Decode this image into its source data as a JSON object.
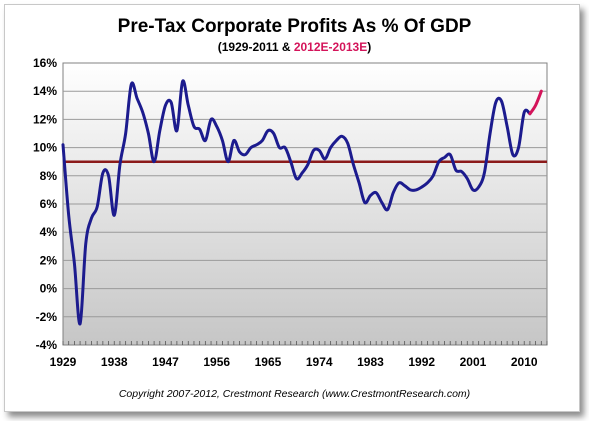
{
  "chart_data": {
    "type": "line",
    "title": "Pre-Tax Corporate Profits As % Of GDP",
    "subtitle_prefix": "(1929-2011 & ",
    "subtitle_highlight": "2012E-2013E",
    "subtitle_suffix": ")",
    "footer": "Copyright 2007-2012, Crestmont Research (www.CrestmontResearch.com)",
    "xlim": [
      1929,
      2014
    ],
    "ylim": [
      -4,
      16
    ],
    "x_ticks": [
      "1929",
      "1938",
      "1947",
      "1956",
      "1965",
      "1974",
      "1983",
      "1992",
      "2001",
      "2010"
    ],
    "y_ticks": [
      "16%",
      "14%",
      "12%",
      "10%",
      "8%",
      "6%",
      "4%",
      "2%",
      "0%",
      "-2%",
      "-4%"
    ],
    "average_line": {
      "value": 9.0,
      "color": "#8b1a1a"
    },
    "series": [
      {
        "color": "#1c1b8e",
        "x": [
          1929,
          1930,
          1931,
          1932,
          1933,
          1934,
          1935,
          1936,
          1937,
          1938,
          1939,
          1940,
          1941,
          1942,
          1943,
          1944,
          1945,
          1946,
          1947,
          1948,
          1949,
          1950,
          1951,
          1952,
          1953,
          1954,
          1955,
          1956,
          1957,
          1958,
          1959,
          1960,
          1961,
          1962,
          1963,
          1964,
          1965,
          1966,
          1967,
          1968,
          1969,
          1970,
          1971,
          1972,
          1973,
          1974,
          1975,
          1976,
          1977,
          1978,
          1979,
          1980,
          1981,
          1982,
          1983,
          1984,
          1985,
          1986,
          1987,
          1988,
          1989,
          1990,
          1991,
          1992,
          1993,
          1994,
          1995,
          1996,
          1997,
          1998,
          1999,
          2000,
          2001,
          2002,
          2003,
          2004,
          2005,
          2006,
          2007,
          2008,
          2009,
          2010,
          2011
        ],
        "y": [
          10.2,
          5.2,
          1.8,
          -2.5,
          3.2,
          5.0,
          5.8,
          8.2,
          8.0,
          5.2,
          8.8,
          11.0,
          14.5,
          13.5,
          12.5,
          11.0,
          9.0,
          11.2,
          13.0,
          13.2,
          11.2,
          14.7,
          13.0,
          11.5,
          11.3,
          10.5,
          12.0,
          11.5,
          10.5,
          9.0,
          10.5,
          9.7,
          9.5,
          10.0,
          10.2,
          10.5,
          11.2,
          11.0,
          10.0,
          10.0,
          9.0,
          7.8,
          8.2,
          8.8,
          9.8,
          9.8,
          9.2,
          10.0,
          10.5,
          10.8,
          10.3,
          8.8,
          7.5,
          6.1,
          6.6,
          6.8,
          6.1,
          5.6,
          6.8,
          7.5,
          7.3,
          7.0,
          7.0,
          7.2,
          7.5,
          8.0,
          9.0,
          9.3,
          9.5,
          8.4,
          8.3,
          7.8,
          7.0,
          7.2,
          8.2,
          11.0,
          13.2,
          13.3,
          11.5,
          9.5,
          10.0,
          12.5,
          12.4
        ]
      },
      {
        "color": "#d4145a",
        "x": [
          2011,
          2012,
          2013
        ],
        "y": [
          12.4,
          13.0,
          14.0
        ]
      }
    ]
  }
}
